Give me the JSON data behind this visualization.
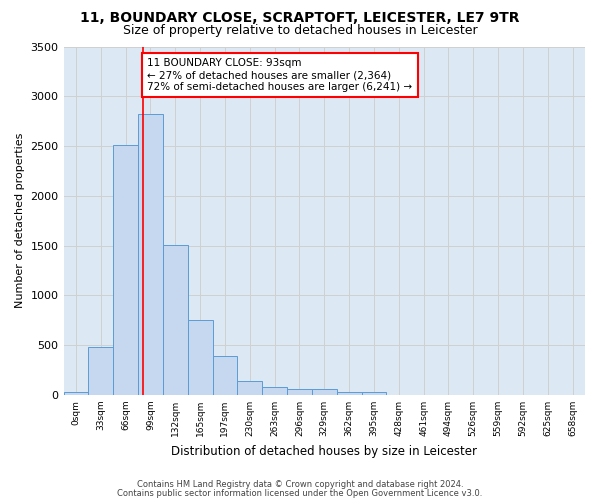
{
  "title_line1": "11, BOUNDARY CLOSE, SCRAPTOFT, LEICESTER, LE7 9TR",
  "title_line2": "Size of property relative to detached houses in Leicester",
  "xlabel": "Distribution of detached houses by size in Leicester",
  "ylabel": "Number of detached properties",
  "bar_color": "#c5d8f0",
  "bar_edge_color": "#5b9bd5",
  "bins_labels": [
    "0sqm",
    "33sqm",
    "66sqm",
    "99sqm",
    "132sqm",
    "165sqm",
    "197sqm",
    "230sqm",
    "263sqm",
    "296sqm",
    "329sqm",
    "362sqm",
    "395sqm",
    "428sqm",
    "461sqm",
    "494sqm",
    "526sqm",
    "559sqm",
    "592sqm",
    "625sqm",
    "658sqm"
  ],
  "bar_values": [
    25,
    480,
    2510,
    2820,
    1510,
    750,
    390,
    140,
    75,
    55,
    55,
    30,
    30,
    0,
    0,
    0,
    0,
    0,
    0,
    0,
    0
  ],
  "vline_x": 2.72,
  "annotation_text": "11 BOUNDARY CLOSE: 93sqm\n← 27% of detached houses are smaller (2,364)\n72% of semi-detached houses are larger (6,241) →",
  "footer_line1": "Contains HM Land Registry data © Crown copyright and database right 2024.",
  "footer_line2": "Contains public sector information licensed under the Open Government Licence v3.0.",
  "ylim": [
    0,
    3500
  ],
  "yticks": [
    0,
    500,
    1000,
    1500,
    2000,
    2500,
    3000,
    3500
  ],
  "grid_color": "#d0d0d0",
  "bg_color": "#dde8f5",
  "title_fontsize": 10,
  "subtitle_fontsize": 9
}
